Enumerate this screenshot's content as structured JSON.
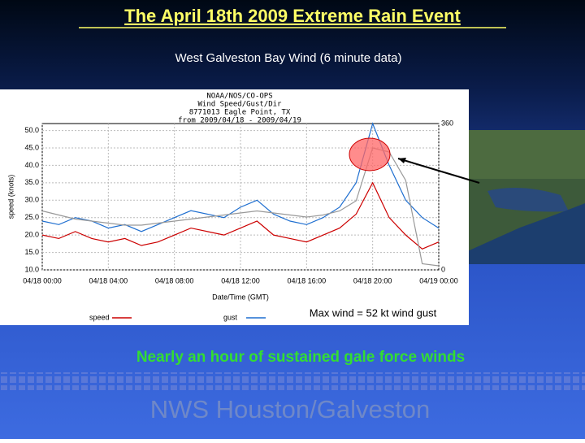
{
  "slide": {
    "title": "The April 18th 2009 Extreme Rain Event",
    "subtitle": "West Galveston Bay Wind  (6 minute data)",
    "caption": "Nearly an hour of sustained gale force winds",
    "footer": "NWS Houston/Galveston"
  },
  "chart_data": {
    "type": "line",
    "title_lines": [
      "NOAA/NOS/CO-OPS",
      "Wind Speed/Gust/Dir",
      "8771013 Eagle Point, TX",
      "from 2009/04/18 - 2009/04/19"
    ],
    "y_label": "speed (knots)",
    "x_label": "Date/Time (GMT)",
    "annotation": "Max wind = 52 kt wind gust",
    "x": [
      0,
      1,
      2,
      3,
      4,
      5,
      6,
      7,
      8,
      9,
      10,
      11,
      12,
      13,
      14,
      15,
      16,
      17,
      18,
      19,
      20,
      21,
      22,
      23,
      24
    ],
    "series": [
      {
        "name": "speed",
        "color": "#cc0000",
        "values": [
          20,
          19,
          21,
          19,
          18,
          19,
          17,
          18,
          20,
          22,
          21,
          20,
          22,
          24,
          20,
          19,
          18,
          20,
          22,
          26,
          35,
          25,
          20,
          16,
          18
        ]
      },
      {
        "name": "gust",
        "color": "#1f6fd0",
        "values": [
          24,
          23,
          25,
          24,
          22,
          23,
          21,
          23,
          25,
          27,
          26,
          25,
          28,
          30,
          26,
          24,
          23,
          25,
          28,
          35,
          52,
          40,
          30,
          25,
          22
        ]
      },
      {
        "color": "#999999",
        "axis": "y2",
        "values": [
          145,
          135,
          125,
          120,
          115,
          110,
          110,
          115,
          120,
          125,
          130,
          135,
          140,
          145,
          140,
          135,
          130,
          135,
          145,
          170,
          300,
          290,
          220,
          15,
          10
        ]
      }
    ],
    "xlim": [
      0,
      24
    ],
    "xticks": [
      {
        "value": 0,
        "label": "04/18 00:00"
      },
      {
        "value": 4,
        "label": "04/18 04:00"
      },
      {
        "value": 8,
        "label": "04/18 08:00"
      },
      {
        "value": 12,
        "label": "04/18 12:00"
      },
      {
        "value": 16,
        "label": "04/18 16:00"
      },
      {
        "value": 20,
        "label": "04/18 20:00"
      },
      {
        "value": 24,
        "label": "04/19 00:00"
      }
    ],
    "ylim": [
      10,
      52
    ],
    "yticks": [
      {
        "value": 10,
        "label": "10.0"
      },
      {
        "value": 15,
        "label": "15.0"
      },
      {
        "value": 20,
        "label": "20.0"
      },
      {
        "value": 25,
        "label": "25.0"
      },
      {
        "value": 30,
        "label": "30.0"
      },
      {
        "value": 35,
        "label": "35.0"
      },
      {
        "value": 40,
        "label": "40.0"
      },
      {
        "value": 45,
        "label": "45.0"
      },
      {
        "value": 50,
        "label": "50.0"
      }
    ],
    "y2lim": [
      0,
      360
    ],
    "y2ticks": [
      0,
      360
    ],
    "grid": true
  }
}
